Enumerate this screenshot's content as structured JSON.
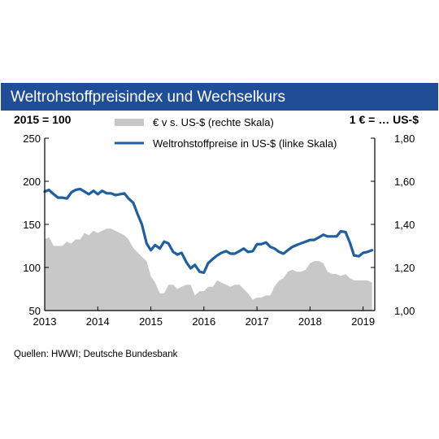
{
  "title": "Weltrohstoffpreisindex und Wechselkurs",
  "source": "Quellen: HWWI; Deutsche Bundesbank",
  "colors": {
    "header_bg": "#1f4e96",
    "line": "#1f5fa0",
    "area": "#c8c8c8"
  },
  "chart_data": {
    "type": "line",
    "title": "Weltrohstoffpreisindex und Wechselkurs",
    "left_axis_label": "2015 = 100",
    "right_axis_label": "1 € = … US-$",
    "left_ylim": [
      50,
      250
    ],
    "right_ylim": [
      1.0,
      1.8
    ],
    "left_ticks": [
      "250",
      "200",
      "150",
      "100",
      "50"
    ],
    "right_ticks": [
      "1,80",
      "1,60",
      "1,40",
      "1,20",
      "1,00"
    ],
    "x_ticks": [
      "2013",
      "2014",
      "2015",
      "2016",
      "2017",
      "2018",
      "2019"
    ],
    "xlim": [
      2013.0,
      2019.22
    ],
    "grid": false,
    "legend_position": "top-center",
    "series": [
      {
        "name": "€ v s. US-$ (rechte Skala)",
        "type": "area",
        "axis": "right",
        "x": [
          2013.0,
          2013.08,
          2013.17,
          2013.25,
          2013.33,
          2013.42,
          2013.5,
          2013.58,
          2013.67,
          2013.75,
          2013.83,
          2013.92,
          2014.0,
          2014.08,
          2014.17,
          2014.25,
          2014.33,
          2014.42,
          2014.5,
          2014.58,
          2014.67,
          2014.75,
          2014.83,
          2014.92,
          2015.0,
          2015.08,
          2015.17,
          2015.25,
          2015.33,
          2015.42,
          2015.5,
          2015.58,
          2015.67,
          2015.75,
          2015.83,
          2015.92,
          2016.0,
          2016.08,
          2016.17,
          2016.25,
          2016.33,
          2016.42,
          2016.5,
          2016.58,
          2016.67,
          2016.75,
          2016.83,
          2016.92,
          2017.0,
          2017.08,
          2017.17,
          2017.25,
          2017.33,
          2017.42,
          2017.5,
          2017.58,
          2017.67,
          2017.75,
          2017.83,
          2017.92,
          2018.0,
          2018.08,
          2018.17,
          2018.25,
          2018.33,
          2018.42,
          2018.5,
          2018.58,
          2018.67,
          2018.75,
          2018.83,
          2018.92,
          2019.0,
          2019.08,
          2019.17
        ],
        "values": [
          1.33,
          1.34,
          1.3,
          1.3,
          1.3,
          1.32,
          1.31,
          1.33,
          1.33,
          1.36,
          1.35,
          1.37,
          1.36,
          1.37,
          1.38,
          1.38,
          1.37,
          1.36,
          1.35,
          1.33,
          1.29,
          1.27,
          1.25,
          1.23,
          1.16,
          1.13,
          1.08,
          1.08,
          1.12,
          1.12,
          1.1,
          1.11,
          1.12,
          1.12,
          1.07,
          1.09,
          1.09,
          1.11,
          1.11,
          1.14,
          1.13,
          1.12,
          1.11,
          1.12,
          1.12,
          1.1,
          1.08,
          1.05,
          1.06,
          1.06,
          1.07,
          1.07,
          1.11,
          1.14,
          1.15,
          1.18,
          1.19,
          1.18,
          1.18,
          1.19,
          1.22,
          1.23,
          1.23,
          1.22,
          1.18,
          1.17,
          1.17,
          1.16,
          1.17,
          1.15,
          1.14,
          1.14,
          1.14,
          1.14,
          1.13
        ]
      },
      {
        "name": "Weltrohstoffpreise in US-$ (linke Skala)",
        "type": "line",
        "axis": "left",
        "x": [
          2013.0,
          2013.08,
          2013.17,
          2013.25,
          2013.33,
          2013.42,
          2013.5,
          2013.58,
          2013.67,
          2013.75,
          2013.83,
          2013.92,
          2014.0,
          2014.08,
          2014.17,
          2014.25,
          2014.33,
          2014.42,
          2014.5,
          2014.58,
          2014.67,
          2014.75,
          2014.83,
          2014.92,
          2015.0,
          2015.08,
          2015.17,
          2015.25,
          2015.33,
          2015.42,
          2015.5,
          2015.58,
          2015.67,
          2015.75,
          2015.83,
          2015.92,
          2016.0,
          2016.08,
          2016.17,
          2016.25,
          2016.33,
          2016.42,
          2016.5,
          2016.58,
          2016.67,
          2016.75,
          2016.83,
          2016.92,
          2017.0,
          2017.08,
          2017.17,
          2017.25,
          2017.33,
          2017.42,
          2017.5,
          2017.58,
          2017.67,
          2017.75,
          2017.83,
          2017.92,
          2018.0,
          2018.08,
          2018.17,
          2018.25,
          2018.33,
          2018.42,
          2018.5,
          2018.58,
          2018.67,
          2018.75,
          2018.83,
          2018.92,
          2019.0,
          2019.08,
          2019.17
        ],
        "values": [
          188,
          190,
          185,
          181,
          181,
          180,
          187,
          190,
          191,
          188,
          185,
          189,
          185,
          189,
          186,
          186,
          184,
          185,
          186,
          180,
          175,
          162,
          150,
          128,
          120,
          126,
          122,
          130,
          128,
          118,
          115,
          117,
          106,
          99,
          103,
          95,
          94,
          105,
          110,
          114,
          117,
          119,
          116,
          116,
          119,
          122,
          118,
          119,
          127,
          127,
          129,
          124,
          122,
          118,
          116,
          120,
          124,
          126,
          128,
          130,
          132,
          132,
          135,
          138,
          136,
          136,
          136,
          142,
          141,
          129,
          114,
          113,
          117,
          118,
          120
        ]
      }
    ]
  }
}
